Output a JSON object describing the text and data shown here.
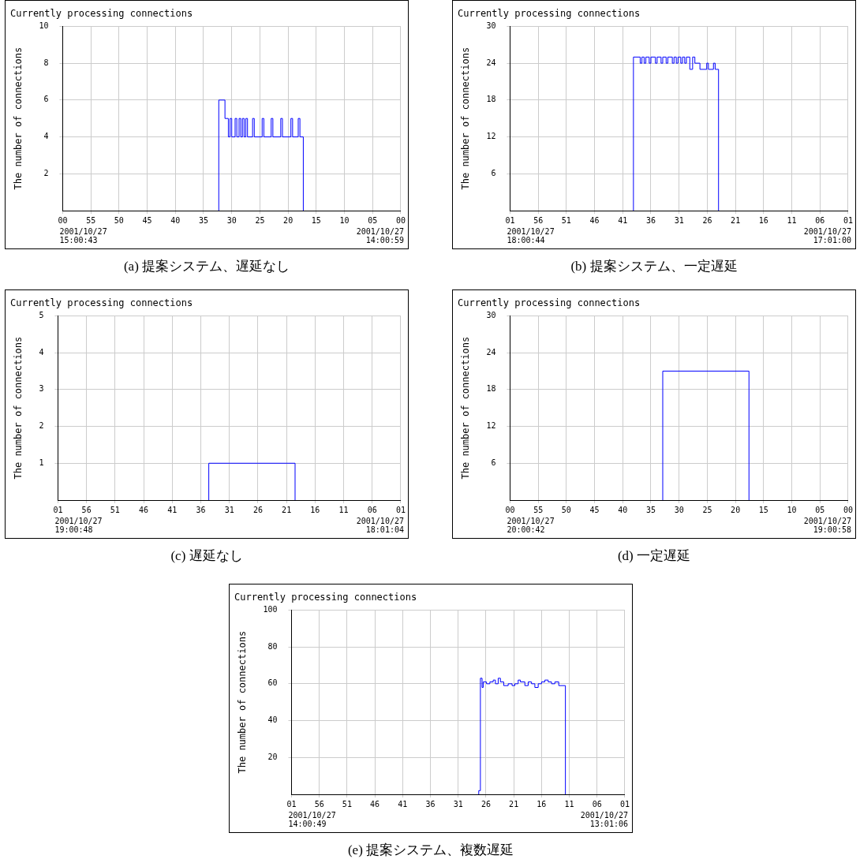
{
  "chart_data": [
    {
      "type": "step",
      "title": "Currently processing connections",
      "ylabel": "The number of connections",
      "color": "#0000ff",
      "grid": true,
      "x": [
        "2001-10-27T14:32:18",
        "2001-10-27T14:32:18",
        "2001-10-27T14:31:12",
        "2001-10-27T14:30:36",
        "2001-10-27T14:30:18",
        "2001-10-27T14:30:00",
        "2001-10-27T14:29:24",
        "2001-10-27T14:29:06",
        "2001-10-27T14:28:42",
        "2001-10-27T14:28:24",
        "2001-10-27T14:28:06",
        "2001-10-27T14:27:48",
        "2001-10-27T14:27:30",
        "2001-10-27T14:27:12",
        "2001-10-27T14:26:18",
        "2001-10-27T14:26:00",
        "2001-10-27T14:24:36",
        "2001-10-27T14:24:18",
        "2001-10-27T14:23:00",
        "2001-10-27T14:22:42",
        "2001-10-27T14:21:18",
        "2001-10-27T14:21:00",
        "2001-10-27T14:19:30",
        "2001-10-27T14:19:12",
        "2001-10-27T14:18:12",
        "2001-10-27T14:17:54",
        "2001-10-27T14:17:18"
      ],
      "values": [
        0,
        6,
        5,
        4,
        5,
        4,
        5,
        4,
        5,
        4,
        5,
        4,
        5,
        4,
        5,
        4,
        5,
        4,
        5,
        4,
        5,
        4,
        5,
        4,
        5,
        4,
        0
      ],
      "xlim": [
        "2001-10-27T15:00",
        "2001-10-27T14:00"
      ],
      "xticks": [
        {
          "value": "2001-10-27T15:00",
          "label": "00"
        },
        {
          "value": "2001-10-27T14:55",
          "label": "55"
        },
        {
          "value": "2001-10-27T14:50",
          "label": "50"
        },
        {
          "value": "2001-10-27T14:45",
          "label": "45"
        },
        {
          "value": "2001-10-27T14:40",
          "label": "40"
        },
        {
          "value": "2001-10-27T14:35",
          "label": "35"
        },
        {
          "value": "2001-10-27T14:30",
          "label": "30"
        },
        {
          "value": "2001-10-27T14:25",
          "label": "25"
        },
        {
          "value": "2001-10-27T14:20",
          "label": "20"
        },
        {
          "value": "2001-10-27T14:15",
          "label": "15"
        },
        {
          "value": "2001-10-27T14:10",
          "label": "10"
        },
        {
          "value": "2001-10-27T14:05",
          "label": "05"
        },
        {
          "value": "2001-10-27T14:00",
          "label": "00"
        }
      ],
      "ylim": [
        0,
        10
      ],
      "yticks": [
        2,
        4,
        6,
        8,
        10
      ],
      "annotations": [
        "2001/10/27\n15:00:43",
        "2001/10/27\n14:00:59",
        "(a) 提案システム、遅延なし"
      ]
    },
    {
      "type": "step",
      "title": "Currently processing connections",
      "ylabel": "The number of connections",
      "color": "#0000ff",
      "grid": true,
      "x": [
        "2001-10-27T17:39:06",
        "2001-10-27T17:39:06",
        "2001-10-27T17:37:54",
        "2001-10-27T17:37:36",
        "2001-10-27T17:37:12",
        "2001-10-27T17:36:54",
        "2001-10-27T17:36:18",
        "2001-10-27T17:36:00",
        "2001-10-27T17:35:12",
        "2001-10-27T17:34:54",
        "2001-10-27T17:34:12",
        "2001-10-27T17:33:54",
        "2001-10-27T17:33:18",
        "2001-10-27T17:33:00",
        "2001-10-27T17:32:12",
        "2001-10-27T17:31:54",
        "2001-10-27T17:31:30",
        "2001-10-27T17:31:12",
        "2001-10-27T17:30:42",
        "2001-10-27T17:30:24",
        "2001-10-27T17:30:00",
        "2001-10-27T17:29:42",
        "2001-10-27T17:29:06",
        "2001-10-27T17:28:36",
        "2001-10-27T17:28:12",
        "2001-10-27T17:27:18",
        "2001-10-27T17:26:06",
        "2001-10-27T17:25:48",
        "2001-10-27T17:24:54",
        "2001-10-27T17:24:36",
        "2001-10-27T17:24:00"
      ],
      "values": [
        0,
        25,
        24,
        25,
        24,
        25,
        24,
        25,
        24,
        25,
        24,
        25,
        24,
        25,
        24,
        25,
        24,
        25,
        24,
        25,
        24,
        25,
        23,
        25,
        24,
        23,
        24,
        23,
        24,
        23,
        0
      ],
      "xlim": [
        "2001-10-27T18:01",
        "2001-10-27T17:01"
      ],
      "xticks": [
        {
          "value": "2001-10-27T18:01",
          "label": "01"
        },
        {
          "value": "2001-10-27T17:56",
          "label": "56"
        },
        {
          "value": "2001-10-27T17:51",
          "label": "51"
        },
        {
          "value": "2001-10-27T17:46",
          "label": "46"
        },
        {
          "value": "2001-10-27T17:41",
          "label": "41"
        },
        {
          "value": "2001-10-27T17:36",
          "label": "36"
        },
        {
          "value": "2001-10-27T17:31",
          "label": "31"
        },
        {
          "value": "2001-10-27T17:26",
          "label": "26"
        },
        {
          "value": "2001-10-27T17:21",
          "label": "21"
        },
        {
          "value": "2001-10-27T17:16",
          "label": "16"
        },
        {
          "value": "2001-10-27T17:11",
          "label": "11"
        },
        {
          "value": "2001-10-27T17:06",
          "label": "06"
        },
        {
          "value": "2001-10-27T17:01",
          "label": "01"
        }
      ],
      "ylim": [
        0,
        30
      ],
      "yticks": [
        6,
        12,
        18,
        24,
        30
      ],
      "annotations": [
        "2001/10/27\n18:00:44",
        "2001/10/27\n17:01:00",
        "(b) 提案システム、一定遅延"
      ]
    },
    {
      "type": "step",
      "title": "Currently processing connections",
      "ylabel": "The number of connections",
      "color": "#0000ff",
      "grid": true,
      "x": [
        "2001-10-27T18:34:36",
        "2001-10-27T18:34:36",
        "2001-10-27T18:19:30"
      ],
      "values": [
        0,
        1,
        0
      ],
      "xlim": [
        "2001-10-27T19:01",
        "2001-10-27T18:01"
      ],
      "xticks": [
        {
          "value": "2001-10-27T19:01",
          "label": "01"
        },
        {
          "value": "2001-10-27T18:56",
          "label": "56"
        },
        {
          "value": "2001-10-27T18:51",
          "label": "51"
        },
        {
          "value": "2001-10-27T18:46",
          "label": "46"
        },
        {
          "value": "2001-10-27T18:41",
          "label": "41"
        },
        {
          "value": "2001-10-27T18:36",
          "label": "36"
        },
        {
          "value": "2001-10-27T18:31",
          "label": "31"
        },
        {
          "value": "2001-10-27T18:26",
          "label": "26"
        },
        {
          "value": "2001-10-27T18:21",
          "label": "21"
        },
        {
          "value": "2001-10-27T18:16",
          "label": "16"
        },
        {
          "value": "2001-10-27T18:11",
          "label": "11"
        },
        {
          "value": "2001-10-27T18:06",
          "label": "06"
        },
        {
          "value": "2001-10-27T18:01",
          "label": "01"
        }
      ],
      "ylim": [
        0,
        5
      ],
      "yticks": [
        1,
        2,
        3,
        4,
        5
      ],
      "annotations": [
        "2001/10/27\n19:00:48",
        "2001/10/27\n18:01:04",
        "(c) 遅延なし"
      ]
    },
    {
      "type": "step",
      "title": "Currently processing connections",
      "ylabel": "The number of connections",
      "color": "#0000ff",
      "grid": true,
      "x": [
        "2001-10-27T19:32:54",
        "2001-10-27T19:32:54",
        "2001-10-27T19:17:36"
      ],
      "values": [
        0,
        21,
        0
      ],
      "xlim": [
        "2001-10-27T20:00",
        "2001-10-27T19:00"
      ],
      "xticks": [
        {
          "value": "2001-10-27T20:00",
          "label": "00"
        },
        {
          "value": "2001-10-27T19:55",
          "label": "55"
        },
        {
          "value": "2001-10-27T19:50",
          "label": "50"
        },
        {
          "value": "2001-10-27T19:45",
          "label": "45"
        },
        {
          "value": "2001-10-27T19:40",
          "label": "40"
        },
        {
          "value": "2001-10-27T19:35",
          "label": "35"
        },
        {
          "value": "2001-10-27T19:30",
          "label": "30"
        },
        {
          "value": "2001-10-27T19:25",
          "label": "25"
        },
        {
          "value": "2001-10-27T19:20",
          "label": "20"
        },
        {
          "value": "2001-10-27T19:15",
          "label": "15"
        },
        {
          "value": "2001-10-27T19:10",
          "label": "10"
        },
        {
          "value": "2001-10-27T19:05",
          "label": "05"
        },
        {
          "value": "2001-10-27T19:00",
          "label": "00"
        }
      ],
      "ylim": [
        0,
        30
      ],
      "yticks": [
        6,
        12,
        18,
        24,
        30
      ],
      "annotations": [
        "2001/10/27\n20:00:42",
        "2001/10/27\n19:00:58",
        "(d) 一定遅延"
      ]
    },
    {
      "type": "step",
      "title": "Currently processing connections",
      "ylabel": "The number of connections",
      "color": "#0000ff",
      "grid": true,
      "x": [
        "2001-10-27T13:27:18",
        "2001-10-27T13:27:18",
        "2001-10-27T13:27:00",
        "2001-10-27T13:26:42",
        "2001-10-27T13:26:30",
        "2001-10-27T13:25:54",
        "2001-10-27T13:25:18",
        "2001-10-27T13:24:42",
        "2001-10-27T13:24:18",
        "2001-10-27T13:23:48",
        "2001-10-27T13:23:24",
        "2001-10-27T13:22:48",
        "2001-10-27T13:22:00",
        "2001-10-27T13:21:18",
        "2001-10-27T13:20:48",
        "2001-10-27T13:20:12",
        "2001-10-27T13:19:48",
        "2001-10-27T13:19:00",
        "2001-10-27T13:18:24",
        "2001-10-27T13:17:48",
        "2001-10-27T13:17:12",
        "2001-10-27T13:16:36",
        "2001-10-27T13:16:00",
        "2001-10-27T13:15:24",
        "2001-10-27T13:14:48",
        "2001-10-27T13:14:12",
        "2001-10-27T13:13:36",
        "2001-10-27T13:12:54",
        "2001-10-27T13:11:42"
      ],
      "values": [
        0,
        2,
        63,
        58,
        61,
        60,
        61,
        62,
        60,
        63,
        61,
        59,
        60,
        59,
        60,
        62,
        61,
        59,
        61,
        60,
        58,
        60,
        61,
        62,
        61,
        60,
        61,
        59,
        0
      ],
      "xlim": [
        "2001-10-27T14:01",
        "2001-10-27T13:01"
      ],
      "xticks": [
        {
          "value": "2001-10-27T14:01",
          "label": "01"
        },
        {
          "value": "2001-10-27T13:56",
          "label": "56"
        },
        {
          "value": "2001-10-27T13:51",
          "label": "51"
        },
        {
          "value": "2001-10-27T13:46",
          "label": "46"
        },
        {
          "value": "2001-10-27T13:41",
          "label": "41"
        },
        {
          "value": "2001-10-27T13:36",
          "label": "36"
        },
        {
          "value": "2001-10-27T13:31",
          "label": "31"
        },
        {
          "value": "2001-10-27T13:26",
          "label": "26"
        },
        {
          "value": "2001-10-27T13:21",
          "label": "21"
        },
        {
          "value": "2001-10-27T13:16",
          "label": "16"
        },
        {
          "value": "2001-10-27T13:11",
          "label": "11"
        },
        {
          "value": "2001-10-27T13:06",
          "label": "06"
        },
        {
          "value": "2001-10-27T13:01",
          "label": "01"
        }
      ],
      "ylim": [
        0,
        100
      ],
      "yticks": [
        20,
        40,
        60,
        80,
        100
      ],
      "annotations": [
        "2001/10/27\n14:00:49",
        "2001/10/27\n13:01:06",
        "(e) 提案システム、複数遅延"
      ]
    }
  ]
}
